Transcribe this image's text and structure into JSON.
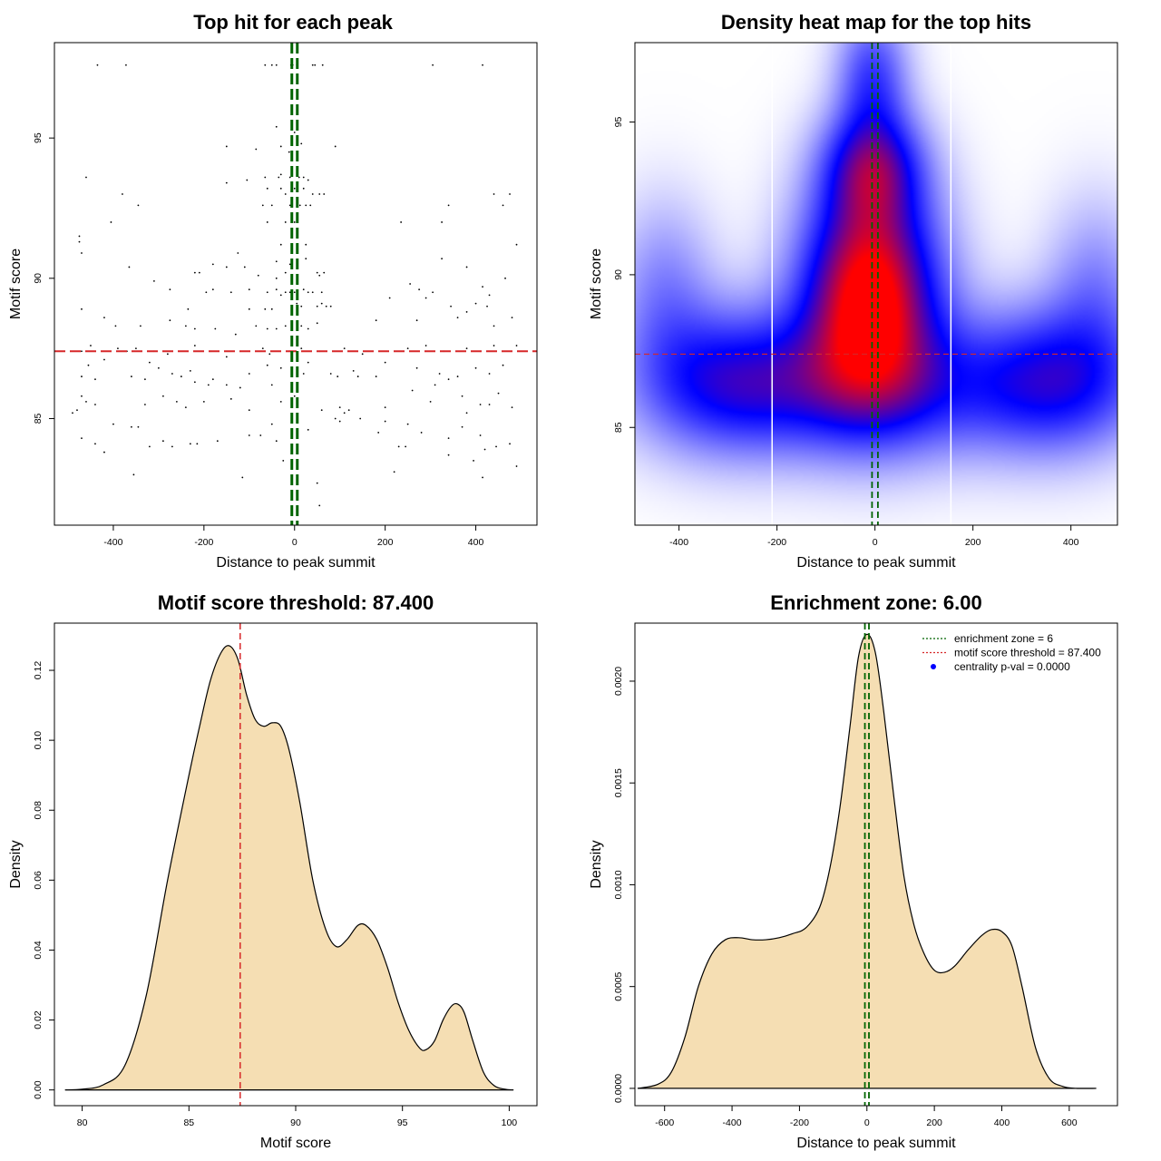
{
  "colors": {
    "threshold": "#d62728",
    "zone": "#006400",
    "fill": "#f5deb3",
    "centrality": "#0000ff"
  },
  "chart_data": [
    {
      "type": "scatter",
      "title": "Top hit for each peak",
      "xlabel": "Distance to peak summit",
      "ylabel": "Motif score",
      "xlim": [
        -530,
        535
      ],
      "ylim": [
        81.2,
        98.4
      ],
      "xticks": [
        -400,
        -200,
        0,
        200,
        400
      ],
      "yticks": [
        85,
        90,
        95
      ],
      "threshold_y": 87.4,
      "zone_x": [
        -6,
        6
      ],
      "points": [
        [
          -435,
          97.6
        ],
        [
          -372,
          97.6
        ],
        [
          -65,
          97.6
        ],
        [
          -50,
          97.6
        ],
        [
          -40,
          97.6
        ],
        [
          -8,
          97.6
        ],
        [
          -4,
          97.6
        ],
        [
          5,
          97.6
        ],
        [
          40,
          97.6
        ],
        [
          45,
          97.6
        ],
        [
          62,
          97.6
        ],
        [
          305,
          97.6
        ],
        [
          415,
          97.6
        ],
        [
          -40,
          95.4
        ],
        [
          -150,
          94.7
        ],
        [
          -85,
          94.6
        ],
        [
          0,
          95.2
        ],
        [
          15,
          94.8
        ],
        [
          -30,
          94.7
        ],
        [
          90,
          94.7
        ],
        [
          -12,
          94.5
        ],
        [
          -460,
          93.6
        ],
        [
          -65,
          93.6
        ],
        [
          -35,
          93.6
        ],
        [
          -30,
          93.7
        ],
        [
          10,
          93.6
        ],
        [
          -10,
          93.6
        ],
        [
          20,
          93.6
        ],
        [
          -150,
          93.4
        ],
        [
          -105,
          93.5
        ],
        [
          30,
          93.5
        ],
        [
          -380,
          93.0
        ],
        [
          -60,
          93.2
        ],
        [
          -30,
          93.2
        ],
        [
          -20,
          93.0
        ],
        [
          0,
          93.2
        ],
        [
          20,
          93.2
        ],
        [
          40,
          93.0
        ],
        [
          55,
          93.0
        ],
        [
          65,
          93.0
        ],
        [
          440,
          93.0
        ],
        [
          475,
          93.0
        ],
        [
          -345,
          92.6
        ],
        [
          -70,
          92.6
        ],
        [
          -50,
          92.6
        ],
        [
          -10,
          92.6
        ],
        [
          12,
          92.6
        ],
        [
          25,
          92.6
        ],
        [
          35,
          92.6
        ],
        [
          340,
          92.6
        ],
        [
          460,
          92.6
        ],
        [
          -405,
          92.0
        ],
        [
          -60,
          92.0
        ],
        [
          -20,
          92.0
        ],
        [
          0,
          92.0
        ],
        [
          235,
          92.0
        ],
        [
          325,
          92.0
        ],
        [
          -475,
          91.5
        ],
        [
          -475,
          91.3
        ],
        [
          -470,
          90.9
        ],
        [
          -125,
          90.9
        ],
        [
          -30,
          91.2
        ],
        [
          25,
          91.2
        ],
        [
          490,
          91.2
        ],
        [
          -365,
          90.4
        ],
        [
          -180,
          90.5
        ],
        [
          -150,
          90.4
        ],
        [
          -110,
          90.4
        ],
        [
          -40,
          90.6
        ],
        [
          -10,
          90.5
        ],
        [
          25,
          90.7
        ],
        [
          325,
          90.7
        ],
        [
          380,
          90.4
        ],
        [
          -220,
          90.2
        ],
        [
          -210,
          90.2
        ],
        [
          -80,
          90.1
        ],
        [
          -40,
          90.0
        ],
        [
          -20,
          90.2
        ],
        [
          50,
          90.2
        ],
        [
          55,
          90.1
        ],
        [
          65,
          90.2
        ],
        [
          465,
          90.0
        ],
        [
          -310,
          89.9
        ],
        [
          -275,
          89.6
        ],
        [
          -195,
          89.5
        ],
        [
          -180,
          89.6
        ],
        [
          -140,
          89.5
        ],
        [
          -100,
          89.6
        ],
        [
          -60,
          89.5
        ],
        [
          -40,
          89.6
        ],
        [
          -30,
          89.4
        ],
        [
          -20,
          89.5
        ],
        [
          -10,
          89.5
        ],
        [
          0,
          89.5
        ],
        [
          20,
          89.6
        ],
        [
          30,
          89.5
        ],
        [
          40,
          89.5
        ],
        [
          60,
          89.5
        ],
        [
          255,
          89.8
        ],
        [
          275,
          89.6
        ],
        [
          290,
          89.3
        ],
        [
          305,
          89.5
        ],
        [
          415,
          89.7
        ],
        [
          430,
          89.4
        ],
        [
          -470,
          88.9
        ],
        [
          -235,
          88.9
        ],
        [
          -100,
          88.9
        ],
        [
          -65,
          88.9
        ],
        [
          -50,
          88.9
        ],
        [
          5,
          89.1
        ],
        [
          15,
          89.0
        ],
        [
          50,
          89.0
        ],
        [
          60,
          89.1
        ],
        [
          70,
          89.0
        ],
        [
          80,
          89.0
        ],
        [
          210,
          89.3
        ],
        [
          345,
          89.0
        ],
        [
          380,
          88.8
        ],
        [
          400,
          89.1
        ],
        [
          425,
          89.0
        ],
        [
          -420,
          88.6
        ],
        [
          -395,
          88.3
        ],
        [
          -340,
          88.3
        ],
        [
          -275,
          88.5
        ],
        [
          -240,
          88.3
        ],
        [
          -220,
          88.2
        ],
        [
          -175,
          88.2
        ],
        [
          -130,
          88.0
        ],
        [
          -85,
          88.3
        ],
        [
          -60,
          88.2
        ],
        [
          -40,
          88.2
        ],
        [
          -20,
          88.3
        ],
        [
          15,
          88.3
        ],
        [
          30,
          88.2
        ],
        [
          50,
          88.4
        ],
        [
          180,
          88.5
        ],
        [
          270,
          88.5
        ],
        [
          360,
          88.6
        ],
        [
          440,
          88.3
        ],
        [
          480,
          88.6
        ],
        [
          -470,
          87.4
        ],
        [
          -450,
          87.6
        ],
        [
          -390,
          87.5
        ],
        [
          -370,
          87.4
        ],
        [
          -350,
          87.5
        ],
        [
          -310,
          87.4
        ],
        [
          -280,
          87.3
        ],
        [
          -220,
          87.6
        ],
        [
          -185,
          87.4
        ],
        [
          -150,
          87.2
        ],
        [
          -70,
          87.5
        ],
        [
          -55,
          87.3
        ],
        [
          -10,
          87.4
        ],
        [
          15,
          87.5
        ],
        [
          55,
          87.4
        ],
        [
          110,
          87.5
        ],
        [
          150,
          87.3
        ],
        [
          250,
          87.5
        ],
        [
          290,
          87.6
        ],
        [
          330,
          87.4
        ],
        [
          380,
          87.5
        ],
        [
          410,
          87.4
        ],
        [
          440,
          87.6
        ],
        [
          490,
          87.6
        ],
        [
          -455,
          86.9
        ],
        [
          -420,
          87.1
        ],
        [
          -320,
          87.0
        ],
        [
          -300,
          86.8
        ],
        [
          -270,
          86.6
        ],
        [
          -250,
          86.5
        ],
        [
          -220,
          86.3
        ],
        [
          -180,
          86.4
        ],
        [
          -150,
          86.2
        ],
        [
          -100,
          86.6
        ],
        [
          -60,
          86.9
        ],
        [
          -30,
          86.8
        ],
        [
          30,
          87.0
        ],
        [
          80,
          86.6
        ],
        [
          130,
          86.7
        ],
        [
          200,
          87.0
        ],
        [
          270,
          86.8
        ],
        [
          320,
          86.6
        ],
        [
          360,
          86.5
        ],
        [
          400,
          86.8
        ],
        [
          430,
          86.6
        ],
        [
          460,
          86.9
        ],
        [
          -470,
          86.5
        ],
        [
          -440,
          86.4
        ],
        [
          -360,
          86.5
        ],
        [
          -330,
          86.4
        ],
        [
          -230,
          86.7
        ],
        [
          -190,
          86.2
        ],
        [
          -120,
          86.1
        ],
        [
          -50,
          86.2
        ],
        [
          20,
          86.6
        ],
        [
          95,
          86.5
        ],
        [
          140,
          86.5
        ],
        [
          180,
          86.5
        ],
        [
          260,
          86.0
        ],
        [
          310,
          86.2
        ],
        [
          340,
          86.4
        ],
        [
          370,
          85.8
        ],
        [
          410,
          85.5
        ],
        [
          450,
          85.9
        ],
        [
          -470,
          85.8
        ],
        [
          -460,
          85.6
        ],
        [
          -440,
          85.5
        ],
        [
          -330,
          85.5
        ],
        [
          -290,
          85.8
        ],
        [
          -260,
          85.6
        ],
        [
          -240,
          85.4
        ],
        [
          -200,
          85.6
        ],
        [
          -140,
          85.7
        ],
        [
          -100,
          85.3
        ],
        [
          -30,
          85.6
        ],
        [
          0,
          85.8
        ],
        [
          60,
          85.3
        ],
        [
          100,
          85.4
        ],
        [
          110,
          85.2
        ],
        [
          120,
          85.3
        ],
        [
          200,
          85.4
        ],
        [
          300,
          85.6
        ],
        [
          380,
          85.2
        ],
        [
          430,
          85.5
        ],
        [
          480,
          85.4
        ],
        [
          -490,
          85.2
        ],
        [
          -480,
          85.3
        ],
        [
          -400,
          84.8
        ],
        [
          -360,
          84.7
        ],
        [
          -345,
          84.7
        ],
        [
          -290,
          84.2
        ],
        [
          -230,
          84.1
        ],
        [
          -170,
          84.2
        ],
        [
          -100,
          84.4
        ],
        [
          -50,
          84.8
        ],
        [
          30,
          84.6
        ],
        [
          90,
          85.0
        ],
        [
          145,
          85.0
        ],
        [
          200,
          84.9
        ],
        [
          250,
          84.8
        ],
        [
          280,
          84.5
        ],
        [
          340,
          84.3
        ],
        [
          370,
          84.7
        ],
        [
          410,
          84.4
        ],
        [
          445,
          84.0
        ],
        [
          475,
          84.1
        ],
        [
          -470,
          84.3
        ],
        [
          -440,
          84.1
        ],
        [
          -420,
          83.8
        ],
        [
          -320,
          84.0
        ],
        [
          -270,
          84.0
        ],
        [
          -215,
          84.1
        ],
        [
          -75,
          84.4
        ],
        [
          -25,
          83.5
        ],
        [
          -40,
          84.2
        ],
        [
          100,
          84.9
        ],
        [
          185,
          84.5
        ],
        [
          230,
          84.0
        ],
        [
          245,
          84.0
        ],
        [
          340,
          83.7
        ],
        [
          395,
          83.5
        ],
        [
          420,
          83.9
        ],
        [
          490,
          83.3
        ],
        [
          -355,
          83.0
        ],
        [
          -115,
          82.9
        ],
        [
          50,
          82.7
        ],
        [
          220,
          83.1
        ],
        [
          415,
          82.9
        ],
        [
          55,
          81.9
        ]
      ]
    },
    {
      "type": "heatmap",
      "title": "Density heat map for the top hits",
      "xlabel": "Distance to peak summit",
      "ylabel": "Motif score",
      "xlim": [
        -490,
        495
      ],
      "ylim": [
        81.8,
        97.6
      ],
      "xticks": [
        -400,
        -200,
        0,
        200,
        400
      ],
      "yticks": [
        85,
        90,
        95
      ],
      "threshold_y": 87.4,
      "zone_x": [
        -6,
        6
      ],
      "white_lines_x": [
        -210,
        155
      ],
      "blobs": [
        {
          "x": -10,
          "y": 89.5,
          "sx": 95,
          "sy": 2.3,
          "w": 1.0
        },
        {
          "x": -5,
          "y": 93.5,
          "sx": 70,
          "sy": 1.3,
          "w": 0.55
        },
        {
          "x": -5,
          "y": 96.5,
          "sx": 50,
          "sy": 1.5,
          "w": 0.35
        },
        {
          "x": -300,
          "y": 86.5,
          "sx": 130,
          "sy": 1.6,
          "w": 0.5
        },
        {
          "x": 360,
          "y": 86.5,
          "sx": 130,
          "sy": 1.6,
          "w": 0.52
        },
        {
          "x": 0,
          "y": 86.3,
          "sx": 160,
          "sy": 1.6,
          "w": 0.45
        },
        {
          "x": -430,
          "y": 89.5,
          "sx": 70,
          "sy": 2.0,
          "w": 0.2
        },
        {
          "x": 450,
          "y": 89.5,
          "sx": 70,
          "sy": 2.0,
          "w": 0.2
        }
      ]
    },
    {
      "type": "area",
      "title": "Motif score threshold: 87.400",
      "xlabel": "Motif score",
      "ylabel": "Density",
      "xlim": [
        78.7,
        101.3
      ],
      "ylim": [
        -0.0045,
        0.1335
      ],
      "xticks": [
        80,
        85,
        90,
        95,
        100
      ],
      "yticks": [
        0.0,
        0.02,
        0.04,
        0.06,
        0.08,
        0.1,
        0.12
      ],
      "ytick_labels": [
        "0.00",
        "0.02",
        "0.04",
        "0.06",
        "0.08",
        "0.10",
        "0.12"
      ],
      "threshold_x": 87.4,
      "x": [
        79.2,
        80,
        81,
        82,
        83,
        84,
        85,
        85.5,
        86,
        86.5,
        86.9,
        87.3,
        87.7,
        88.1,
        88.5,
        88.9,
        89.3,
        89.7,
        90.2,
        90.8,
        91.4,
        91.9,
        92.4,
        92.9,
        93.3,
        93.8,
        94.3,
        94.8,
        95.3,
        95.8,
        96.1,
        96.5,
        96.9,
        97.3,
        97.6,
        97.9,
        98.3,
        98.8,
        99.3,
        99.8,
        100.2
      ],
      "y": [
        0.0,
        0.0002,
        0.0015,
        0.007,
        0.027,
        0.06,
        0.09,
        0.104,
        0.117,
        0.125,
        0.127,
        0.123,
        0.113,
        0.106,
        0.104,
        0.105,
        0.104,
        0.097,
        0.082,
        0.06,
        0.046,
        0.041,
        0.043,
        0.047,
        0.047,
        0.043,
        0.035,
        0.025,
        0.017,
        0.012,
        0.0115,
        0.014,
        0.02,
        0.024,
        0.0245,
        0.022,
        0.014,
        0.005,
        0.0012,
        0.0002,
        0.0
      ]
    },
    {
      "type": "area",
      "title": "Enrichment zone: 6.00",
      "xlabel": "Distance to peak summit",
      "ylabel": "Density",
      "xlim": [
        -688,
        743
      ],
      "ylim": [
        -8.5e-05,
        0.002285
      ],
      "xticks": [
        -600,
        -400,
        -200,
        0,
        200,
        400,
        600
      ],
      "yticks": [
        0.0,
        0.0005,
        0.001,
        0.0015,
        0.002
      ],
      "ytick_labels": [
        "0.0000",
        "0.0005",
        "0.0010",
        "0.0015",
        "0.0020"
      ],
      "zone_x": [
        -6,
        6
      ],
      "x": [
        -680,
        -620,
        -580,
        -540,
        -500,
        -460,
        -420,
        -380,
        -340,
        -300,
        -260,
        -220,
        -180,
        -140,
        -110,
        -80,
        -50,
        -25,
        0,
        25,
        50,
        80,
        110,
        140,
        170,
        200,
        230,
        260,
        300,
        340,
        370,
        400,
        430,
        460,
        500,
        540,
        580,
        620,
        680
      ],
      "y": [
        0.0,
        2e-05,
        8e-05,
        0.00025,
        0.0005,
        0.00066,
        0.00073,
        0.00074,
        0.00073,
        0.00073,
        0.00074,
        0.00076,
        0.00079,
        0.00089,
        0.00108,
        0.00138,
        0.00178,
        0.00212,
        0.00223,
        0.00214,
        0.00185,
        0.00143,
        0.00104,
        0.0008,
        0.00066,
        0.00058,
        0.00057,
        0.0006,
        0.00068,
        0.00075,
        0.00078,
        0.00077,
        0.0007,
        0.0005,
        0.0002,
        5e-05,
        1e-05,
        0.0,
        0.0
      ]
    }
  ],
  "legend": {
    "zone": "enrichment zone = 6",
    "threshold": "motif score threshold = 87.400",
    "centrality": "centrality p-val = 0.0000"
  }
}
